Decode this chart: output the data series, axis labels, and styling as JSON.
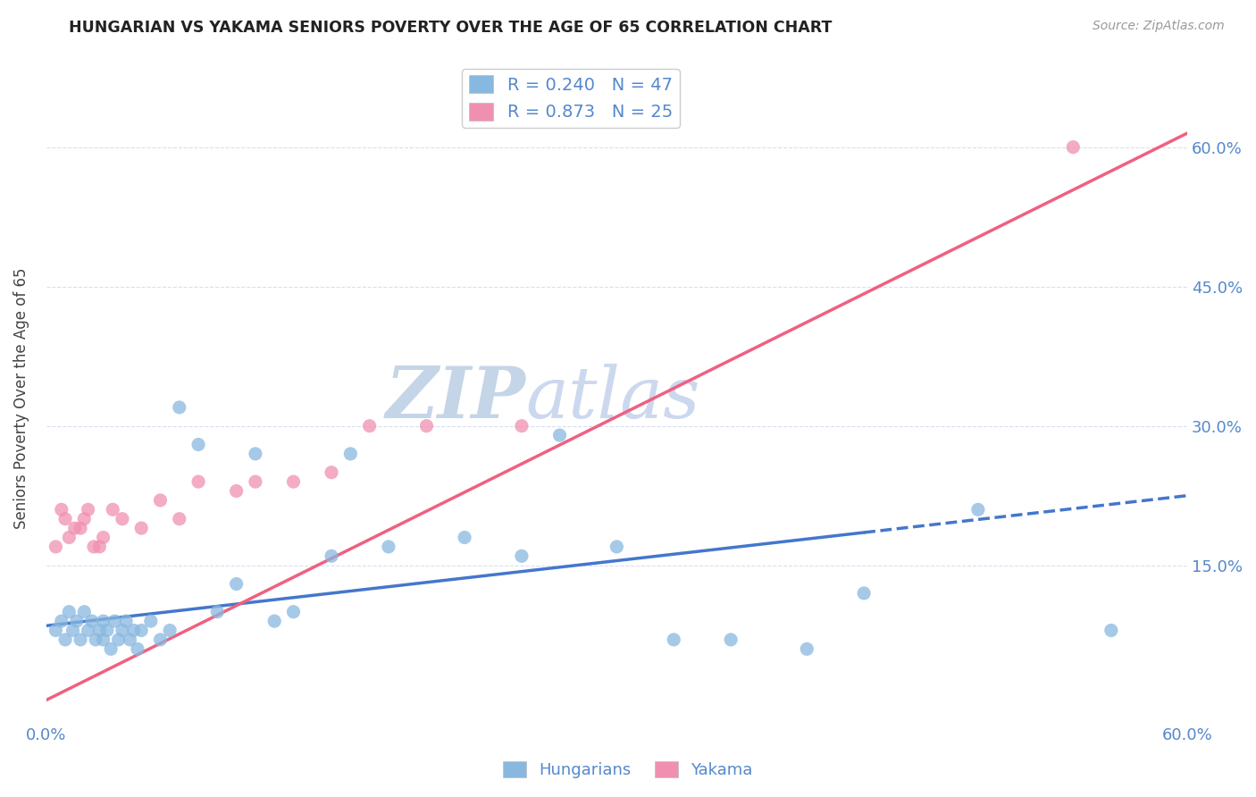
{
  "title": "HUNGARIAN VS YAKAMA SENIORS POVERTY OVER THE AGE OF 65 CORRELATION CHART",
  "source_text": "Source: ZipAtlas.com",
  "ylabel": "Seniors Poverty Over the Age of 65",
  "xlim": [
    0.0,
    0.6
  ],
  "ylim": [
    -0.02,
    0.68
  ],
  "ytick_labels": [
    "15.0%",
    "30.0%",
    "45.0%",
    "60.0%"
  ],
  "ytick_values": [
    0.15,
    0.3,
    0.45,
    0.6
  ],
  "legend_r_entries": [
    {
      "label": "R = 0.240   N = 47",
      "color": "#a8c8e8"
    },
    {
      "label": "R = 0.873   N = 25",
      "color": "#f4a8c0"
    }
  ],
  "watermark": "ZIPatlas",
  "watermark_color": "#ccd8ee",
  "title_color": "#222222",
  "axis_color": "#5588cc",
  "grid_color": "#d8dff0",
  "hungarians_color": "#88b8e0",
  "yakama_color": "#f090b0",
  "trend_hungarian_color": "#4477cc",
  "trend_yakama_color": "#f06080",
  "hungarians_x": [
    0.005,
    0.008,
    0.01,
    0.012,
    0.014,
    0.016,
    0.018,
    0.02,
    0.022,
    0.024,
    0.026,
    0.028,
    0.03,
    0.03,
    0.032,
    0.034,
    0.036,
    0.038,
    0.04,
    0.042,
    0.044,
    0.046,
    0.048,
    0.05,
    0.055,
    0.06,
    0.065,
    0.07,
    0.08,
    0.09,
    0.1,
    0.11,
    0.12,
    0.13,
    0.15,
    0.16,
    0.18,
    0.22,
    0.25,
    0.27,
    0.3,
    0.33,
    0.36,
    0.4,
    0.43,
    0.49,
    0.56
  ],
  "hungarians_y": [
    0.08,
    0.09,
    0.07,
    0.1,
    0.08,
    0.09,
    0.07,
    0.1,
    0.08,
    0.09,
    0.07,
    0.08,
    0.09,
    0.07,
    0.08,
    0.06,
    0.09,
    0.07,
    0.08,
    0.09,
    0.07,
    0.08,
    0.06,
    0.08,
    0.09,
    0.07,
    0.08,
    0.32,
    0.28,
    0.1,
    0.13,
    0.27,
    0.09,
    0.1,
    0.16,
    0.27,
    0.17,
    0.18,
    0.16,
    0.29,
    0.17,
    0.07,
    0.07,
    0.06,
    0.12,
    0.21,
    0.08
  ],
  "yakama_x": [
    0.005,
    0.008,
    0.01,
    0.012,
    0.015,
    0.018,
    0.02,
    0.022,
    0.025,
    0.028,
    0.03,
    0.035,
    0.04,
    0.05,
    0.06,
    0.07,
    0.08,
    0.1,
    0.11,
    0.13,
    0.15,
    0.17,
    0.2,
    0.25,
    0.54
  ],
  "yakama_y": [
    0.17,
    0.21,
    0.2,
    0.18,
    0.19,
    0.19,
    0.2,
    0.21,
    0.17,
    0.17,
    0.18,
    0.21,
    0.2,
    0.19,
    0.22,
    0.2,
    0.24,
    0.23,
    0.24,
    0.24,
    0.25,
    0.3,
    0.3,
    0.3,
    0.6
  ],
  "trend_hung_x0": 0.0,
  "trend_hung_x1": 0.6,
  "trend_hung_y0": 0.085,
  "trend_hung_y1": 0.225,
  "trend_hung_solid_end": 0.43,
  "trend_yak_x0": 0.0,
  "trend_yak_x1": 0.6,
  "trend_yak_y0": 0.005,
  "trend_yak_y1": 0.615
}
